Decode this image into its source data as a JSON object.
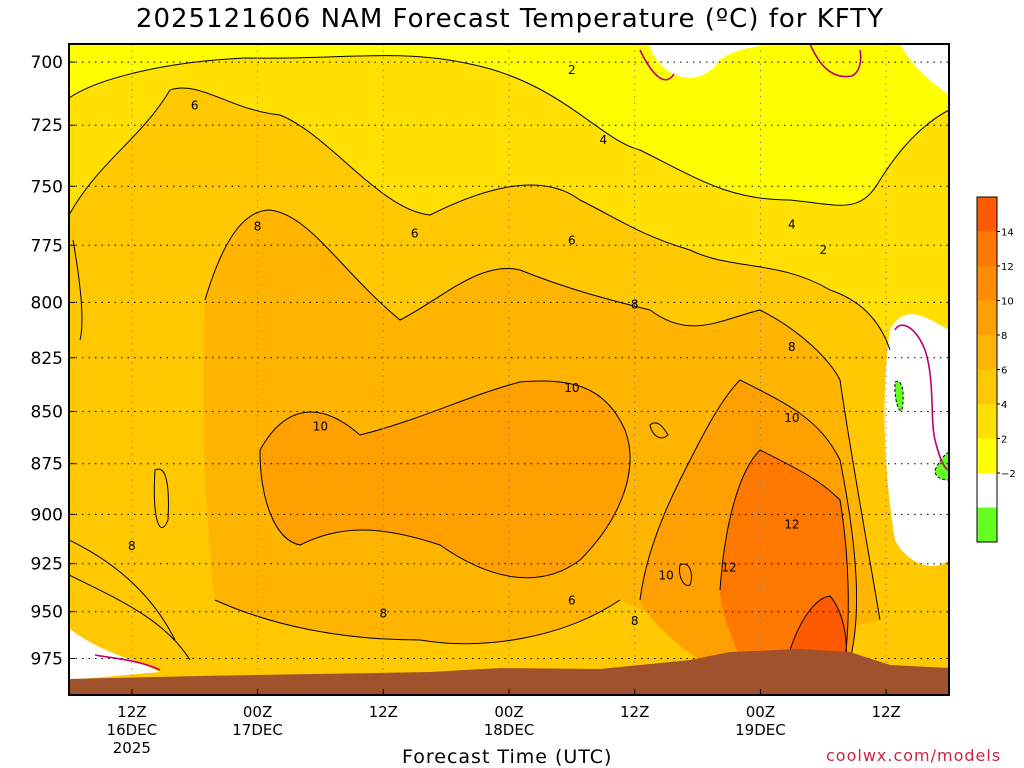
{
  "chart_data": {
    "type": "heatmap",
    "title": "2025121606 NAM Forecast Temperature (ºC) for KFTY",
    "xlabel": "Forecast Time (UTC)",
    "ylabel": "",
    "credit": "coolwx.com/models",
    "y_scale": "log-pressure",
    "ylim": [
      995,
      693
    ],
    "y_ticks": [
      "700",
      "725",
      "750",
      "775",
      "800",
      "825",
      "850",
      "875",
      "900",
      "925",
      "950",
      "975"
    ],
    "x_ticks": [
      {
        "lines": [
          "12Z",
          "16DEC",
          "2025"
        ]
      },
      {
        "lines": [
          "00Z",
          "17DEC"
        ]
      },
      {
        "lines": [
          "12Z"
        ]
      },
      {
        "lines": [
          "00Z",
          "18DEC"
        ]
      },
      {
        "lines": [
          "12Z"
        ]
      },
      {
        "lines": [
          "00Z",
          "19DEC"
        ]
      },
      {
        "lines": [
          "12Z"
        ]
      }
    ],
    "grid": true,
    "colorbar": {
      "ticks": [
        "14",
        "12",
        "10",
        "8",
        "6",
        "4",
        "2",
        "−2"
      ],
      "colors": [
        "#ff5a00",
        "#ff7800",
        "#ff8c00",
        "#ffa000",
        "#ffb400",
        "#ffc800",
        "#ffe000",
        "#ffff00",
        "#ffffff",
        "#66ff22"
      ]
    },
    "contour_labels": [
      {
        "text": "2",
        "x": "2025-12-18T06Z",
        "y": 703
      },
      {
        "text": "6",
        "x": "2025-12-16T18Z",
        "y": 717
      },
      {
        "text": "4",
        "x": "2025-12-18T09Z",
        "y": 731
      },
      {
        "text": "8",
        "x": "2025-12-17T00Z",
        "y": 767
      },
      {
        "text": "6",
        "x": "2025-12-17T15Z",
        "y": 770
      },
      {
        "text": "6",
        "x": "2025-12-18T06Z",
        "y": 773
      },
      {
        "text": "4",
        "x": "2025-12-19T03Z",
        "y": 766
      },
      {
        "text": "2",
        "x": "2025-12-19T06Z",
        "y": 777
      },
      {
        "text": "8",
        "x": "2025-12-18T12Z",
        "y": 801
      },
      {
        "text": "8",
        "x": "2025-12-19T03Z",
        "y": 820
      },
      {
        "text": "10",
        "x": "2025-12-18T06Z",
        "y": 839
      },
      {
        "text": "10",
        "x": "2025-12-17T06Z",
        "y": 857
      },
      {
        "text": "10",
        "x": "2025-12-19T03Z",
        "y": 853
      },
      {
        "text": "12",
        "x": "2025-12-19T03Z",
        "y": 905
      },
      {
        "text": "8",
        "x": "2025-12-16T12Z",
        "y": 916
      },
      {
        "text": "12",
        "x": "2025-12-18T21Z",
        "y": 927
      },
      {
        "text": "10",
        "x": "2025-12-18T15Z",
        "y": 931
      },
      {
        "text": "6",
        "x": "2025-12-18T06Z",
        "y": 944
      },
      {
        "text": "8",
        "x": "2025-12-17T12Z",
        "y": 951
      },
      {
        "text": "8",
        "x": "2025-12-18T12Z",
        "y": 955
      }
    ],
    "terrain_color": "#a0522d"
  }
}
